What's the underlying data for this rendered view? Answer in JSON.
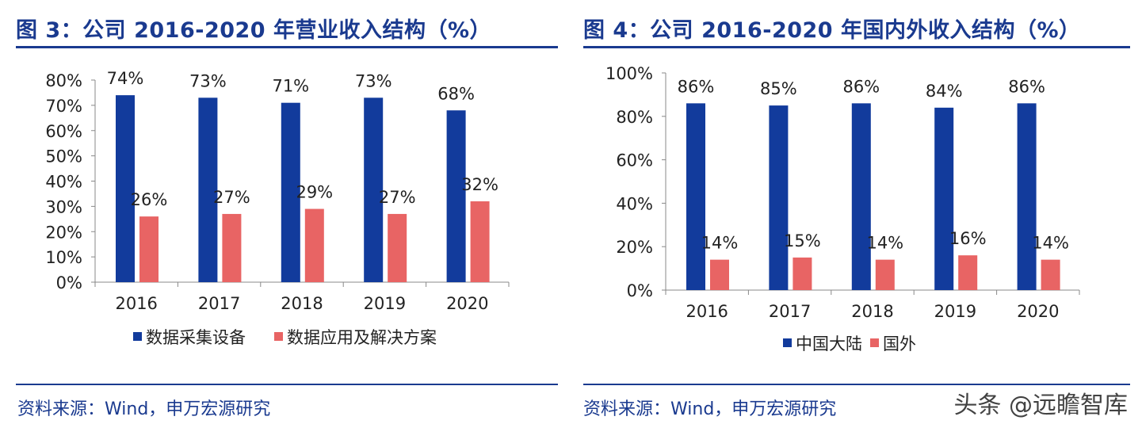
{
  "colors": {
    "title": "#1a3a8f",
    "series_primary": "#123b9c",
    "series_secondary": "#e86464",
    "axis": "#888888",
    "text": "#222222"
  },
  "watermark": "头条 @远瞻智库",
  "chart_data": [
    {
      "type": "bar",
      "title": "图 3：公司 2016-2020 年营业收入结构（%）",
      "categories": [
        "2016",
        "2017",
        "2018",
        "2019",
        "2020"
      ],
      "series": [
        {
          "name": "数据采集设备",
          "values": [
            74,
            73,
            71,
            73,
            68
          ],
          "labels": [
            "74%",
            "73%",
            "71%",
            "73%",
            "68%"
          ]
        },
        {
          "name": "数据应用及解决方案",
          "values": [
            26,
            27,
            29,
            27,
            32
          ],
          "labels": [
            "26%",
            "27%",
            "29%",
            "27%",
            "32%"
          ]
        }
      ],
      "ylim": [
        0,
        80
      ],
      "yticks": [
        "0%",
        "10%",
        "20%",
        "30%",
        "40%",
        "50%",
        "60%",
        "70%",
        "80%"
      ],
      "legend": "bottom",
      "source": "资料来源：Wind，申万宏源研究"
    },
    {
      "type": "bar",
      "title": "图 4：公司 2016-2020 年国内外收入结构（%）",
      "categories": [
        "2016",
        "2017",
        "2018",
        "2019",
        "2020"
      ],
      "series": [
        {
          "name": "中国大陆",
          "values": [
            86,
            85,
            86,
            84,
            86
          ],
          "labels": [
            "86%",
            "85%",
            "86%",
            "84%",
            "86%"
          ]
        },
        {
          "name": "国外",
          "values": [
            14,
            15,
            14,
            16,
            14
          ],
          "labels": [
            "14%",
            "15%",
            "14%",
            "16%",
            "14%"
          ]
        }
      ],
      "ylim": [
        0,
        100
      ],
      "yticks": [
        "0%",
        "20%",
        "40%",
        "60%",
        "80%",
        "100%"
      ],
      "legend": "bottom",
      "source": "资料来源：Wind，申万宏源研究"
    }
  ]
}
